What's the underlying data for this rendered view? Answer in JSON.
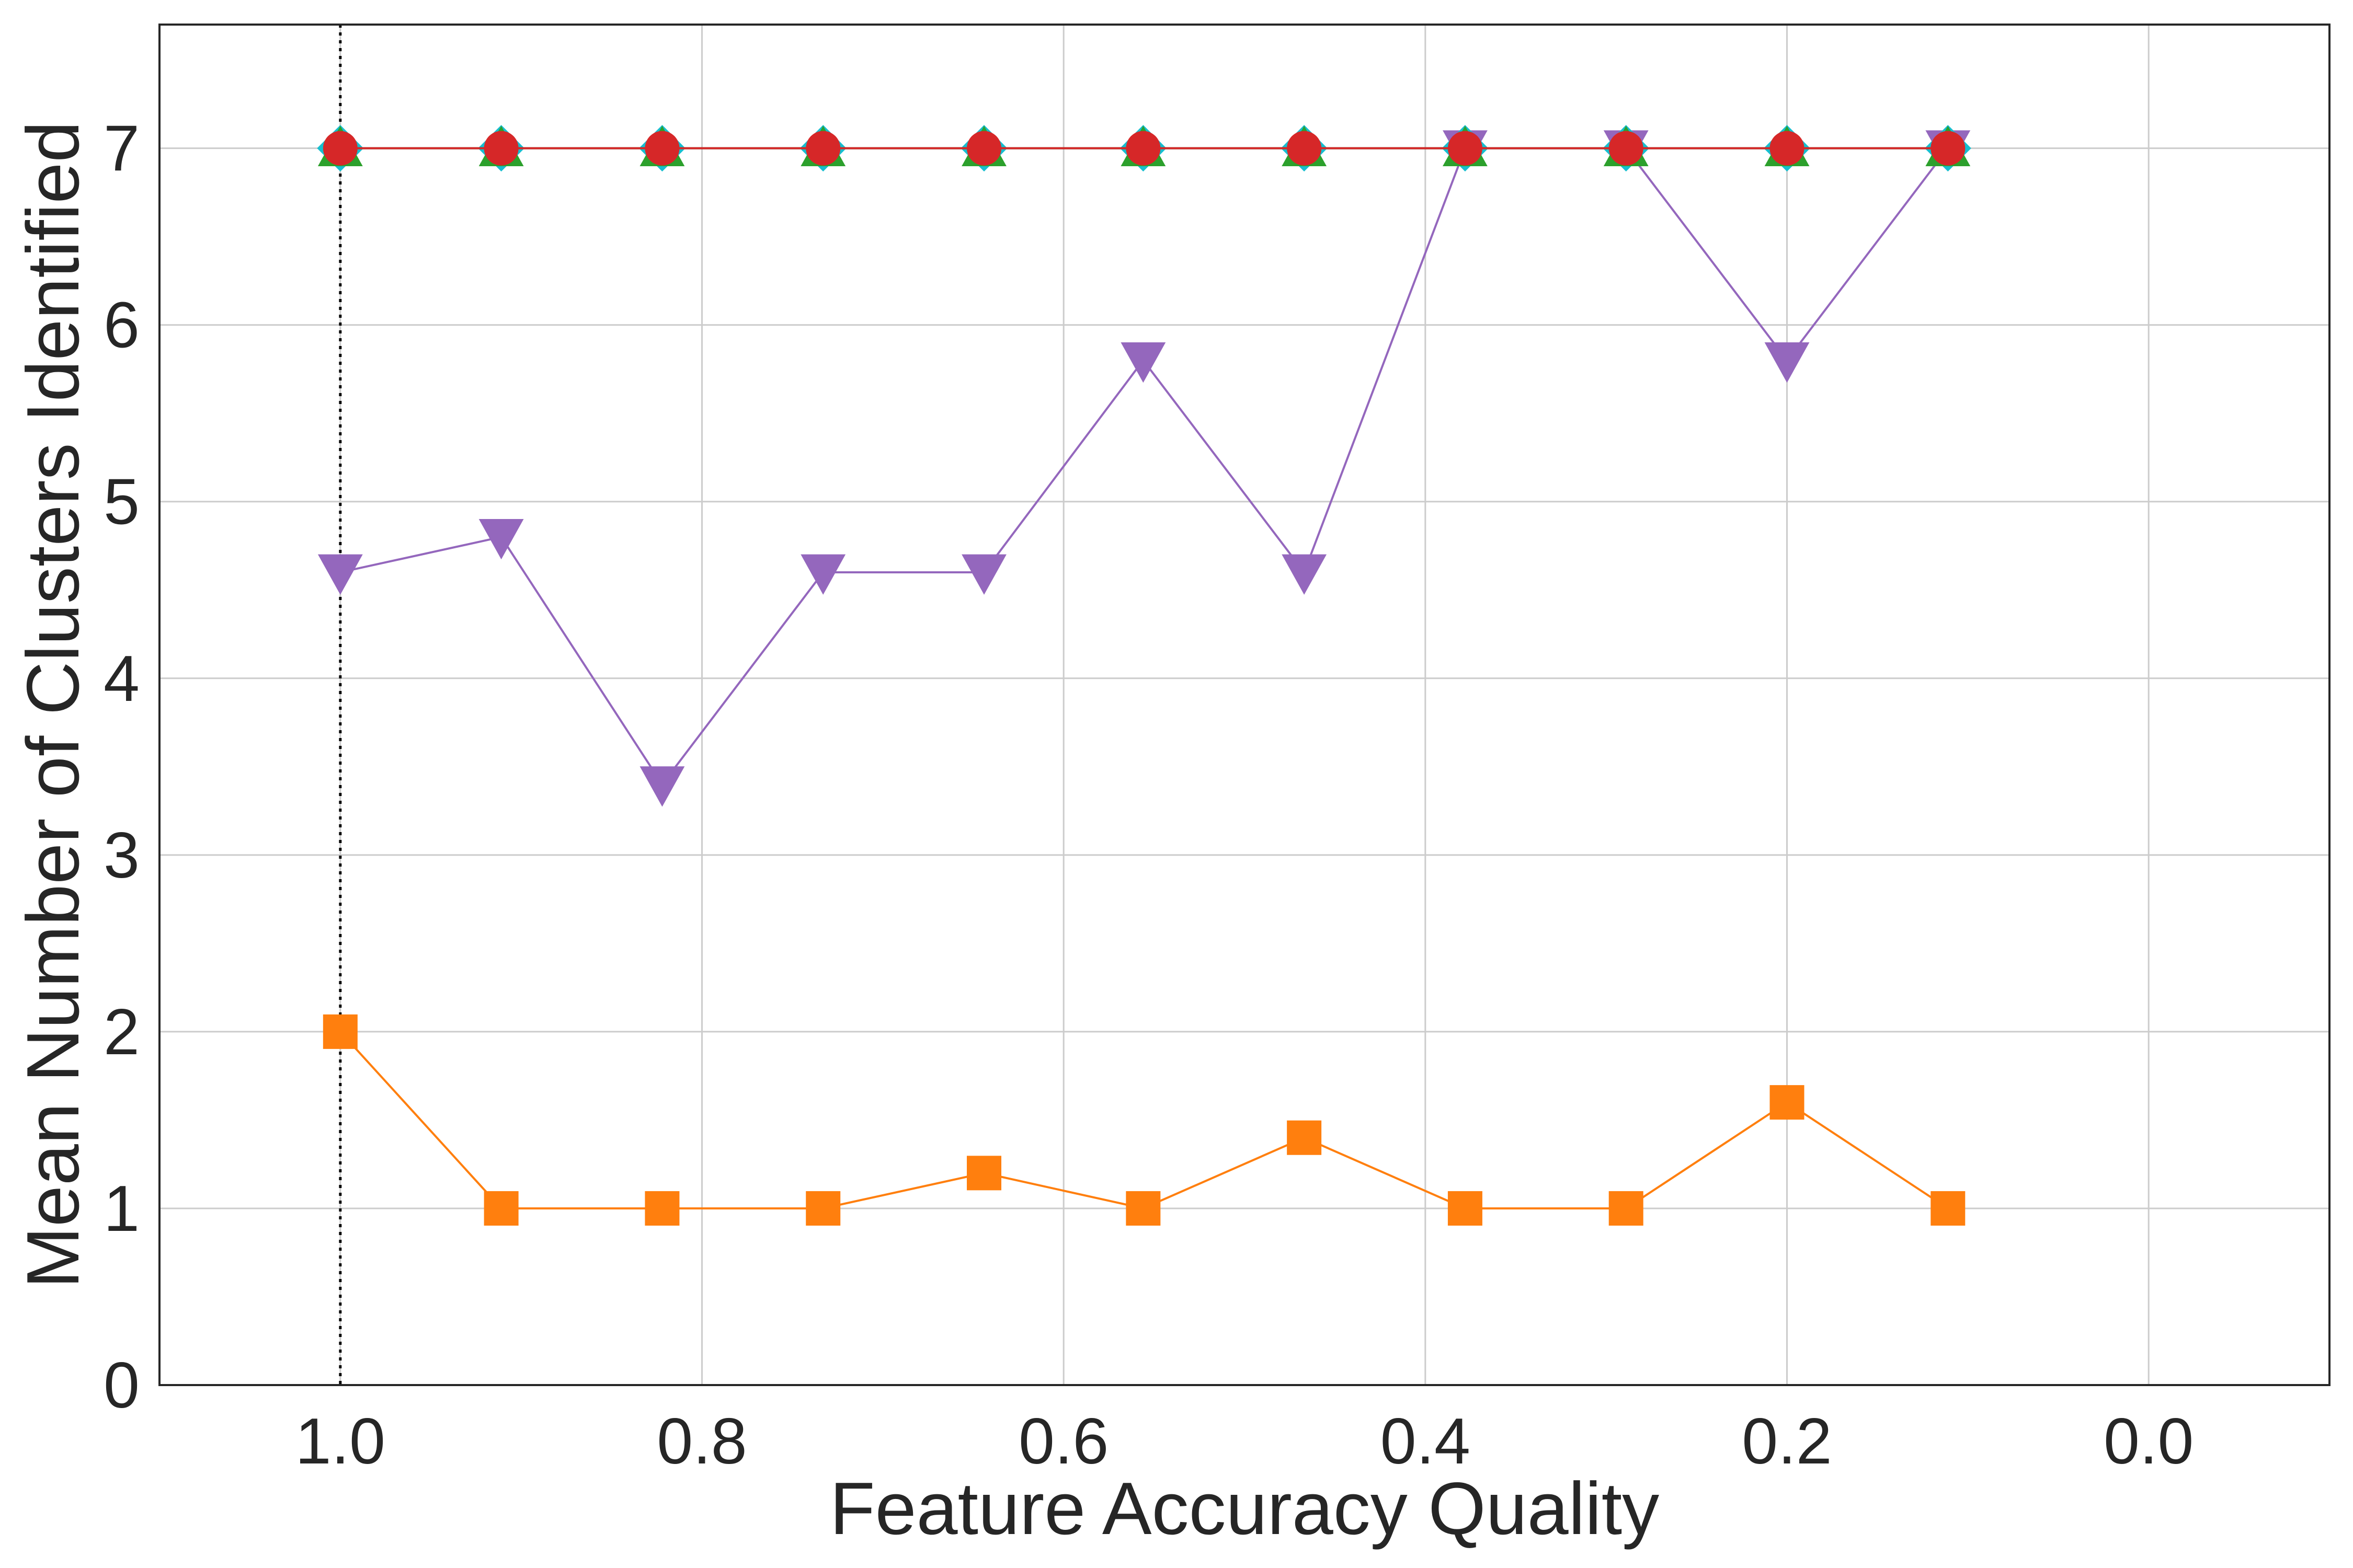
{
  "chart_data": {
    "type": "line",
    "title": "",
    "xlabel": "Feature Accuracy Quality",
    "ylabel": "Mean Number of Clusters Identified",
    "xlim": [
      1.1,
      -0.1
    ],
    "ylim": [
      0,
      7.7
    ],
    "x_inverted": true,
    "xticks": [
      1.0,
      0.8,
      0.6,
      0.4,
      0.2,
      0.0
    ],
    "xtick_labels": [
      "1.0",
      "0.8",
      "0.6",
      "0.4",
      "0.2",
      "0.0"
    ],
    "yticks": [
      0,
      1,
      2,
      3,
      4,
      5,
      6,
      7
    ],
    "ytick_labels": [
      "0",
      "1",
      "2",
      "3",
      "4",
      "5",
      "6",
      "7"
    ],
    "grid": true,
    "legend": "none",
    "reference_line": {
      "x": 1.0,
      "style": "dotted",
      "color": "#000000"
    },
    "x": [
      1.0,
      0.911,
      0.822,
      0.733,
      0.644,
      0.556,
      0.467,
      0.378,
      0.289,
      0.2,
      0.111
    ],
    "series": [
      {
        "marker": "square",
        "color": "#ff7f0e",
        "values": [
          2,
          1,
          1,
          1,
          1.2,
          1,
          1.4,
          1,
          1,
          1.6,
          1
        ]
      },
      {
        "marker": "triangle-down",
        "color": "#9467bd",
        "values": [
          4.6,
          4.8,
          3.4,
          4.6,
          4.6,
          5.8,
          4.6,
          7,
          7,
          5.8,
          7
        ]
      },
      {
        "marker": "diamond",
        "color": "#17becf",
        "values": [
          7,
          7,
          7,
          7,
          7,
          7,
          7,
          7,
          7,
          7,
          7
        ]
      },
      {
        "marker": "triangle-up",
        "color": "#2ca02c",
        "values": [
          7,
          7,
          7,
          7,
          7,
          7,
          7,
          7,
          7,
          7,
          7
        ]
      },
      {
        "marker": "circle",
        "color": "#d62728",
        "values": [
          7,
          7,
          7,
          7,
          7,
          7,
          7,
          7,
          7,
          7,
          7
        ]
      }
    ]
  }
}
